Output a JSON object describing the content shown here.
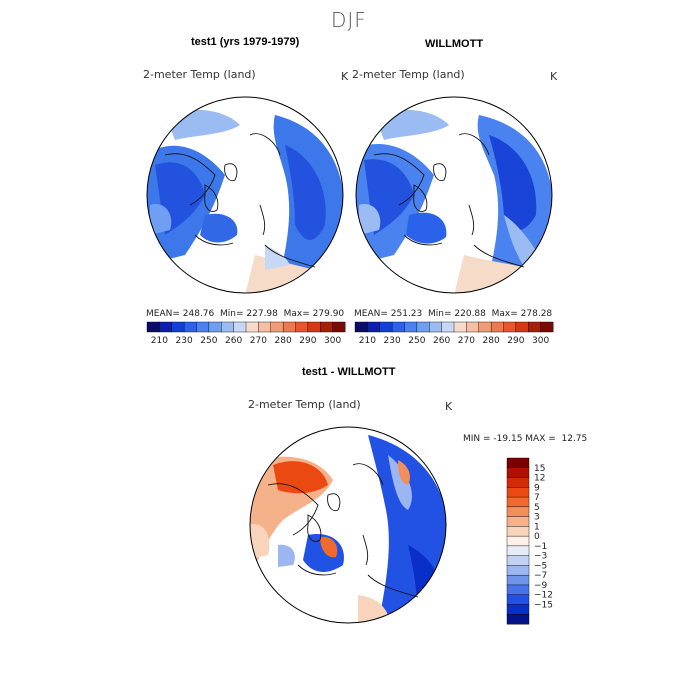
{
  "figure": {
    "suptitle": "DJF"
  },
  "chart_data": [
    {
      "type": "heatmap",
      "title": "test1 (yrs 1979-1979)",
      "variable": "2-meter Temp (land)",
      "units": "K",
      "projection": "north polar stereographic",
      "stats": {
        "mean_label": "MEAN=",
        "mean": "248.76",
        "min_label": "Min=",
        "min": "227.98",
        "max_label": "Max=",
        "max": "279.90"
      },
      "colorbar": {
        "orientation": "horizontal",
        "colors": [
          "#0a0a6e",
          "#0d1fa8",
          "#1240d6",
          "#2a62ec",
          "#4a82f0",
          "#6f9ef2",
          "#9bbcf2",
          "#c6d8f4",
          "#f6dcc8",
          "#f5bfa0",
          "#f29c74",
          "#ee7a4c",
          "#e8562a",
          "#d13a12",
          "#a5200a",
          "#7a0a05"
        ],
        "tick_labels": [
          "210",
          "230",
          "250",
          "260",
          "270",
          "280",
          "290",
          "300"
        ]
      }
    },
    {
      "type": "heatmap",
      "title": "WILLMOTT",
      "variable": "2-meter Temp (land)",
      "units": "K",
      "projection": "north polar stereographic",
      "stats": {
        "mean_label": "MEAN=",
        "mean": "251.23",
        "min_label": "Min=",
        "min": "220.88",
        "max_label": "Max=",
        "max": "278.28"
      },
      "colorbar": {
        "orientation": "horizontal",
        "colors": [
          "#0a0a6e",
          "#0d1fa8",
          "#1240d6",
          "#2a62ec",
          "#4a82f0",
          "#6f9ef2",
          "#9bbcf2",
          "#c6d8f4",
          "#f6dcc8",
          "#f5bfa0",
          "#f29c74",
          "#ee7a4c",
          "#e8562a",
          "#d13a12",
          "#a5200a",
          "#7a0a05"
        ],
        "tick_labels": [
          "210",
          "230",
          "250",
          "260",
          "270",
          "280",
          "290",
          "300"
        ]
      }
    },
    {
      "type": "heatmap",
      "title": "test1 - WILLMOTT",
      "variable": "2-meter Temp (land)",
      "units": "K",
      "projection": "north polar stereographic",
      "stats": {
        "text": "MIN = -19.15 MAX =  12.75"
      },
      "colorbar": {
        "orientation": "vertical",
        "colors": [
          "#7a0000",
          "#b01000",
          "#d62a05",
          "#ea4a12",
          "#f06a2e",
          "#f28e5a",
          "#f5b28a",
          "#f8d4bc",
          "#fdf0e6",
          "#e6ecf8",
          "#c2d2f4",
          "#9bb6f0",
          "#6f94ec",
          "#4874ea",
          "#2252e4",
          "#0a2ec8",
          "#05128a"
        ],
        "tick_labels": [
          "15",
          "12",
          "9",
          "7",
          "5",
          "3",
          "1",
          "0",
          "-1",
          "-3",
          "-5",
          "-7",
          "-9",
          "-12",
          "-15"
        ]
      }
    }
  ]
}
